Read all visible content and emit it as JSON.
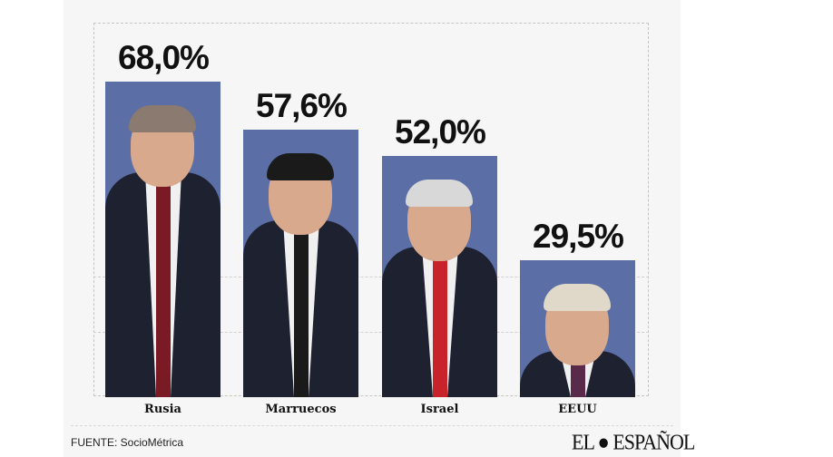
{
  "chart_data": {
    "type": "bar",
    "categories": [
      "Rusia",
      "Marruecos",
      "Israel",
      "EEUU"
    ],
    "values": [
      68.0,
      57.6,
      52.0,
      29.5
    ],
    "value_labels": [
      "68,0%",
      "57,6%",
      "52,0%",
      "29,5%"
    ],
    "ylim": [
      0,
      81
    ],
    "grid": true,
    "bar_color": "#5b6ea6",
    "tie_colors": [
      "#7a1a24",
      "#1a1a1a",
      "#c8222a",
      "#5a2a4a"
    ]
  },
  "footer": {
    "source": "FUENTE: SocioMétrica",
    "logo": "EL ESPAÑOL"
  }
}
